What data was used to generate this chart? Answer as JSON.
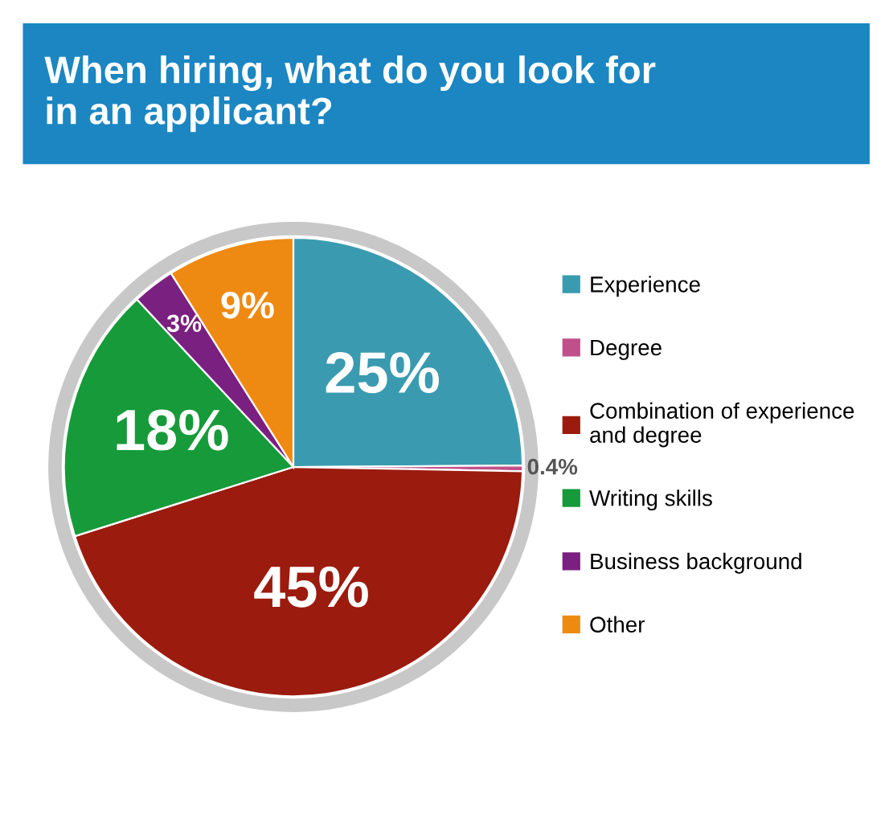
{
  "chart_data": {
    "type": "pie",
    "title": "When hiring, what do you look for\nin an applicant?",
    "categories": [
      "Experience",
      "Degree",
      "Combination of experience\nand degree",
      "Writing skills",
      "Business background",
      "Other"
    ],
    "values": [
      25,
      0.4,
      45,
      18,
      3,
      9
    ],
    "colors": [
      "#3a9bb0",
      "#c0508a",
      "#9b1b0e",
      "#169a3a",
      "#7a2080",
      "#ee8a12"
    ],
    "value_labels": [
      "25%",
      "0.4%",
      "45%",
      "18%",
      "3%",
      "9%"
    ],
    "legend": "right"
  }
}
